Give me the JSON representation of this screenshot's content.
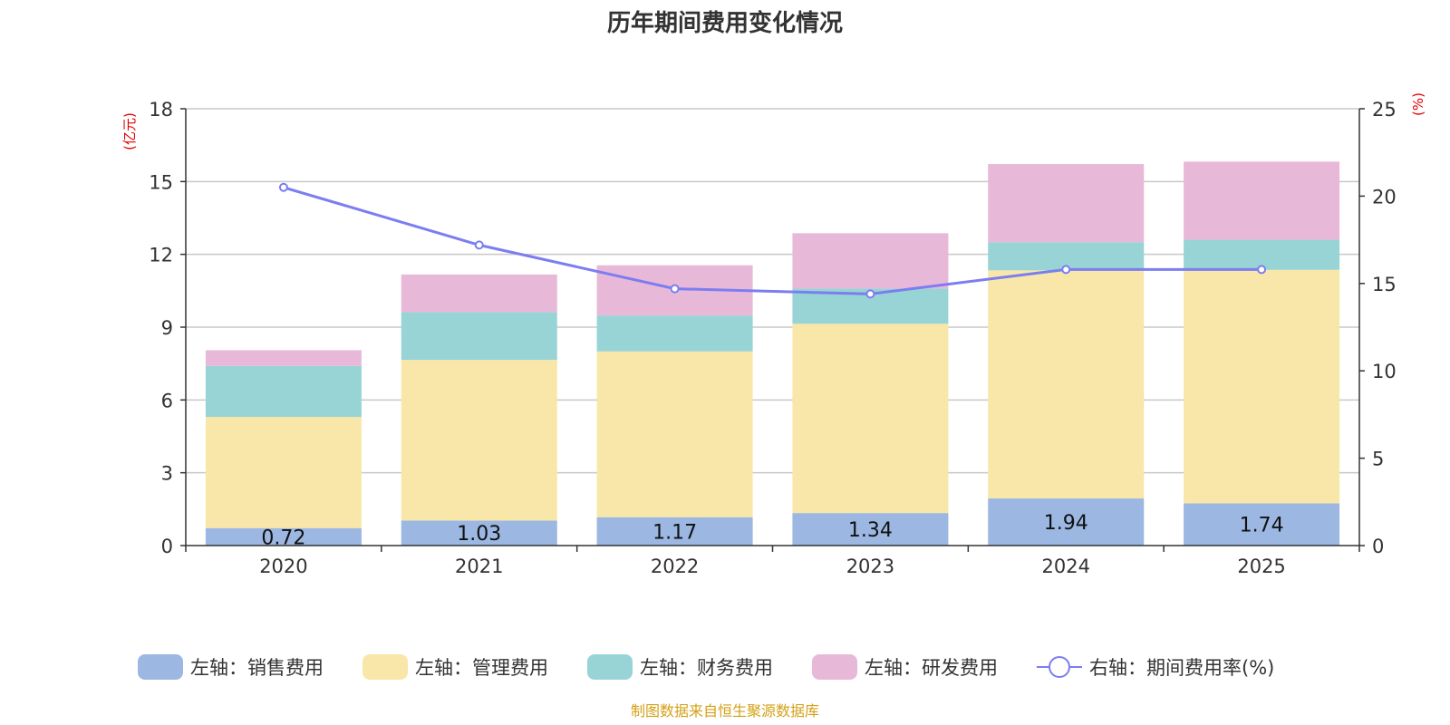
{
  "chart_data": {
    "type": "bar",
    "stacked": true,
    "title": "历年期间费用变化情况",
    "categories": [
      "2020",
      "2021",
      "2022",
      "2023",
      "2024",
      "2025"
    ],
    "left_axis": {
      "unit": "(亿元)",
      "ylim": [
        0,
        18
      ],
      "ticks": [
        0,
        3,
        6,
        9,
        12,
        15,
        18
      ]
    },
    "right_axis": {
      "unit": "(%)",
      "ylim": [
        0,
        25
      ],
      "ticks": [
        0,
        5,
        10,
        15,
        20,
        25
      ]
    },
    "series": [
      {
        "name": "左轴：销售费用",
        "axis": "left",
        "kind": "bar",
        "color": "#9bb7e2",
        "values": [
          0.72,
          1.03,
          1.17,
          1.34,
          1.94,
          1.74
        ],
        "labels": [
          "0.72",
          "1.03",
          "1.17",
          "1.34",
          "1.94",
          "1.74"
        ]
      },
      {
        "name": "左轴：管理费用",
        "axis": "left",
        "kind": "bar",
        "color": "#f8e7a8",
        "values": [
          4.58,
          6.62,
          6.83,
          7.8,
          9.4,
          9.62
        ]
      },
      {
        "name": "左轴：财务费用",
        "axis": "left",
        "kind": "bar",
        "color": "#98d4d5",
        "values": [
          2.1,
          1.97,
          1.48,
          1.45,
          1.16,
          1.24
        ]
      },
      {
        "name": "左轴：研发费用",
        "axis": "left",
        "kind": "bar",
        "color": "#e8b8d8",
        "values": [
          0.65,
          1.55,
          2.07,
          2.28,
          3.22,
          3.22
        ]
      },
      {
        "name": "右轴：期间费用率(%)",
        "axis": "right",
        "kind": "line",
        "color": "#7b7ef0",
        "values": [
          20.5,
          17.2,
          14.7,
          14.4,
          15.8,
          15.8
        ]
      }
    ],
    "legend_position": "bottom",
    "grid": true
  },
  "source_text": "制图数据来自恒生聚源数据库"
}
